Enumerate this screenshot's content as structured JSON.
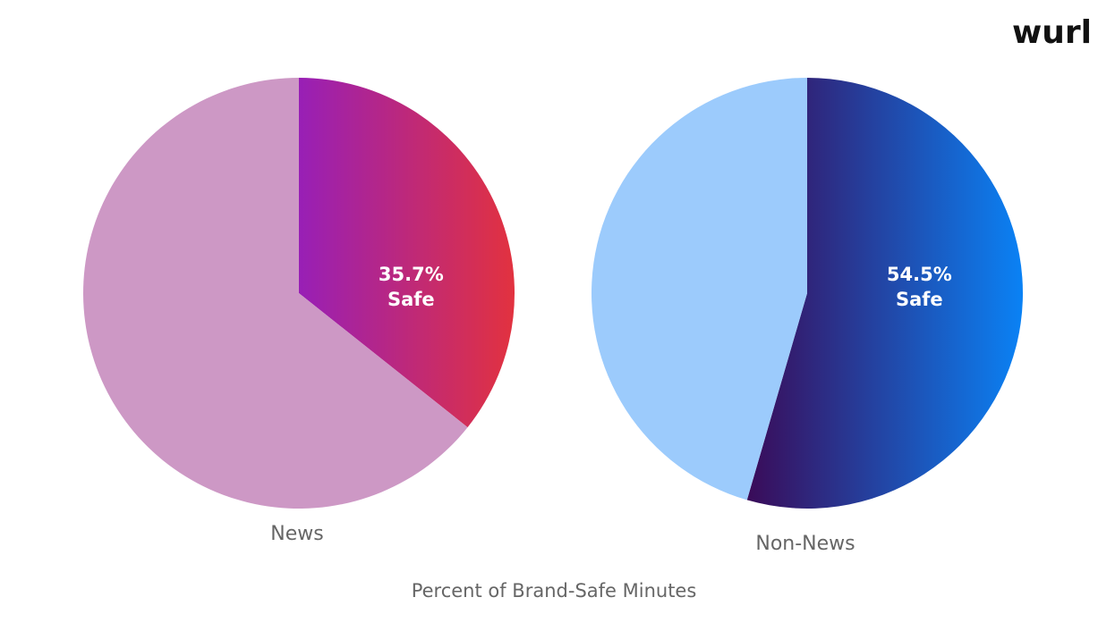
{
  "logo": "wurl",
  "caption": "Percent of Brand-Safe Minutes",
  "chart_data": [
    {
      "type": "pie",
      "title": "News",
      "categories": [
        "Safe",
        null
      ],
      "values": [
        35.7,
        64.3
      ],
      "value_labels": [
        "35.7%",
        null
      ],
      "colors": [
        [
          "#981fb6",
          "#e2323f"
        ],
        [
          "#cd98c5"
        ]
      ]
    },
    {
      "type": "pie",
      "title": "Non-News",
      "categories": [
        "Safe",
        null
      ],
      "values": [
        54.5,
        45.5
      ],
      "value_labels": [
        "54.5%",
        null
      ],
      "colors": [
        [
          "#3a0b58",
          "#0a82f5"
        ],
        [
          "#9ccbfc"
        ]
      ]
    }
  ]
}
